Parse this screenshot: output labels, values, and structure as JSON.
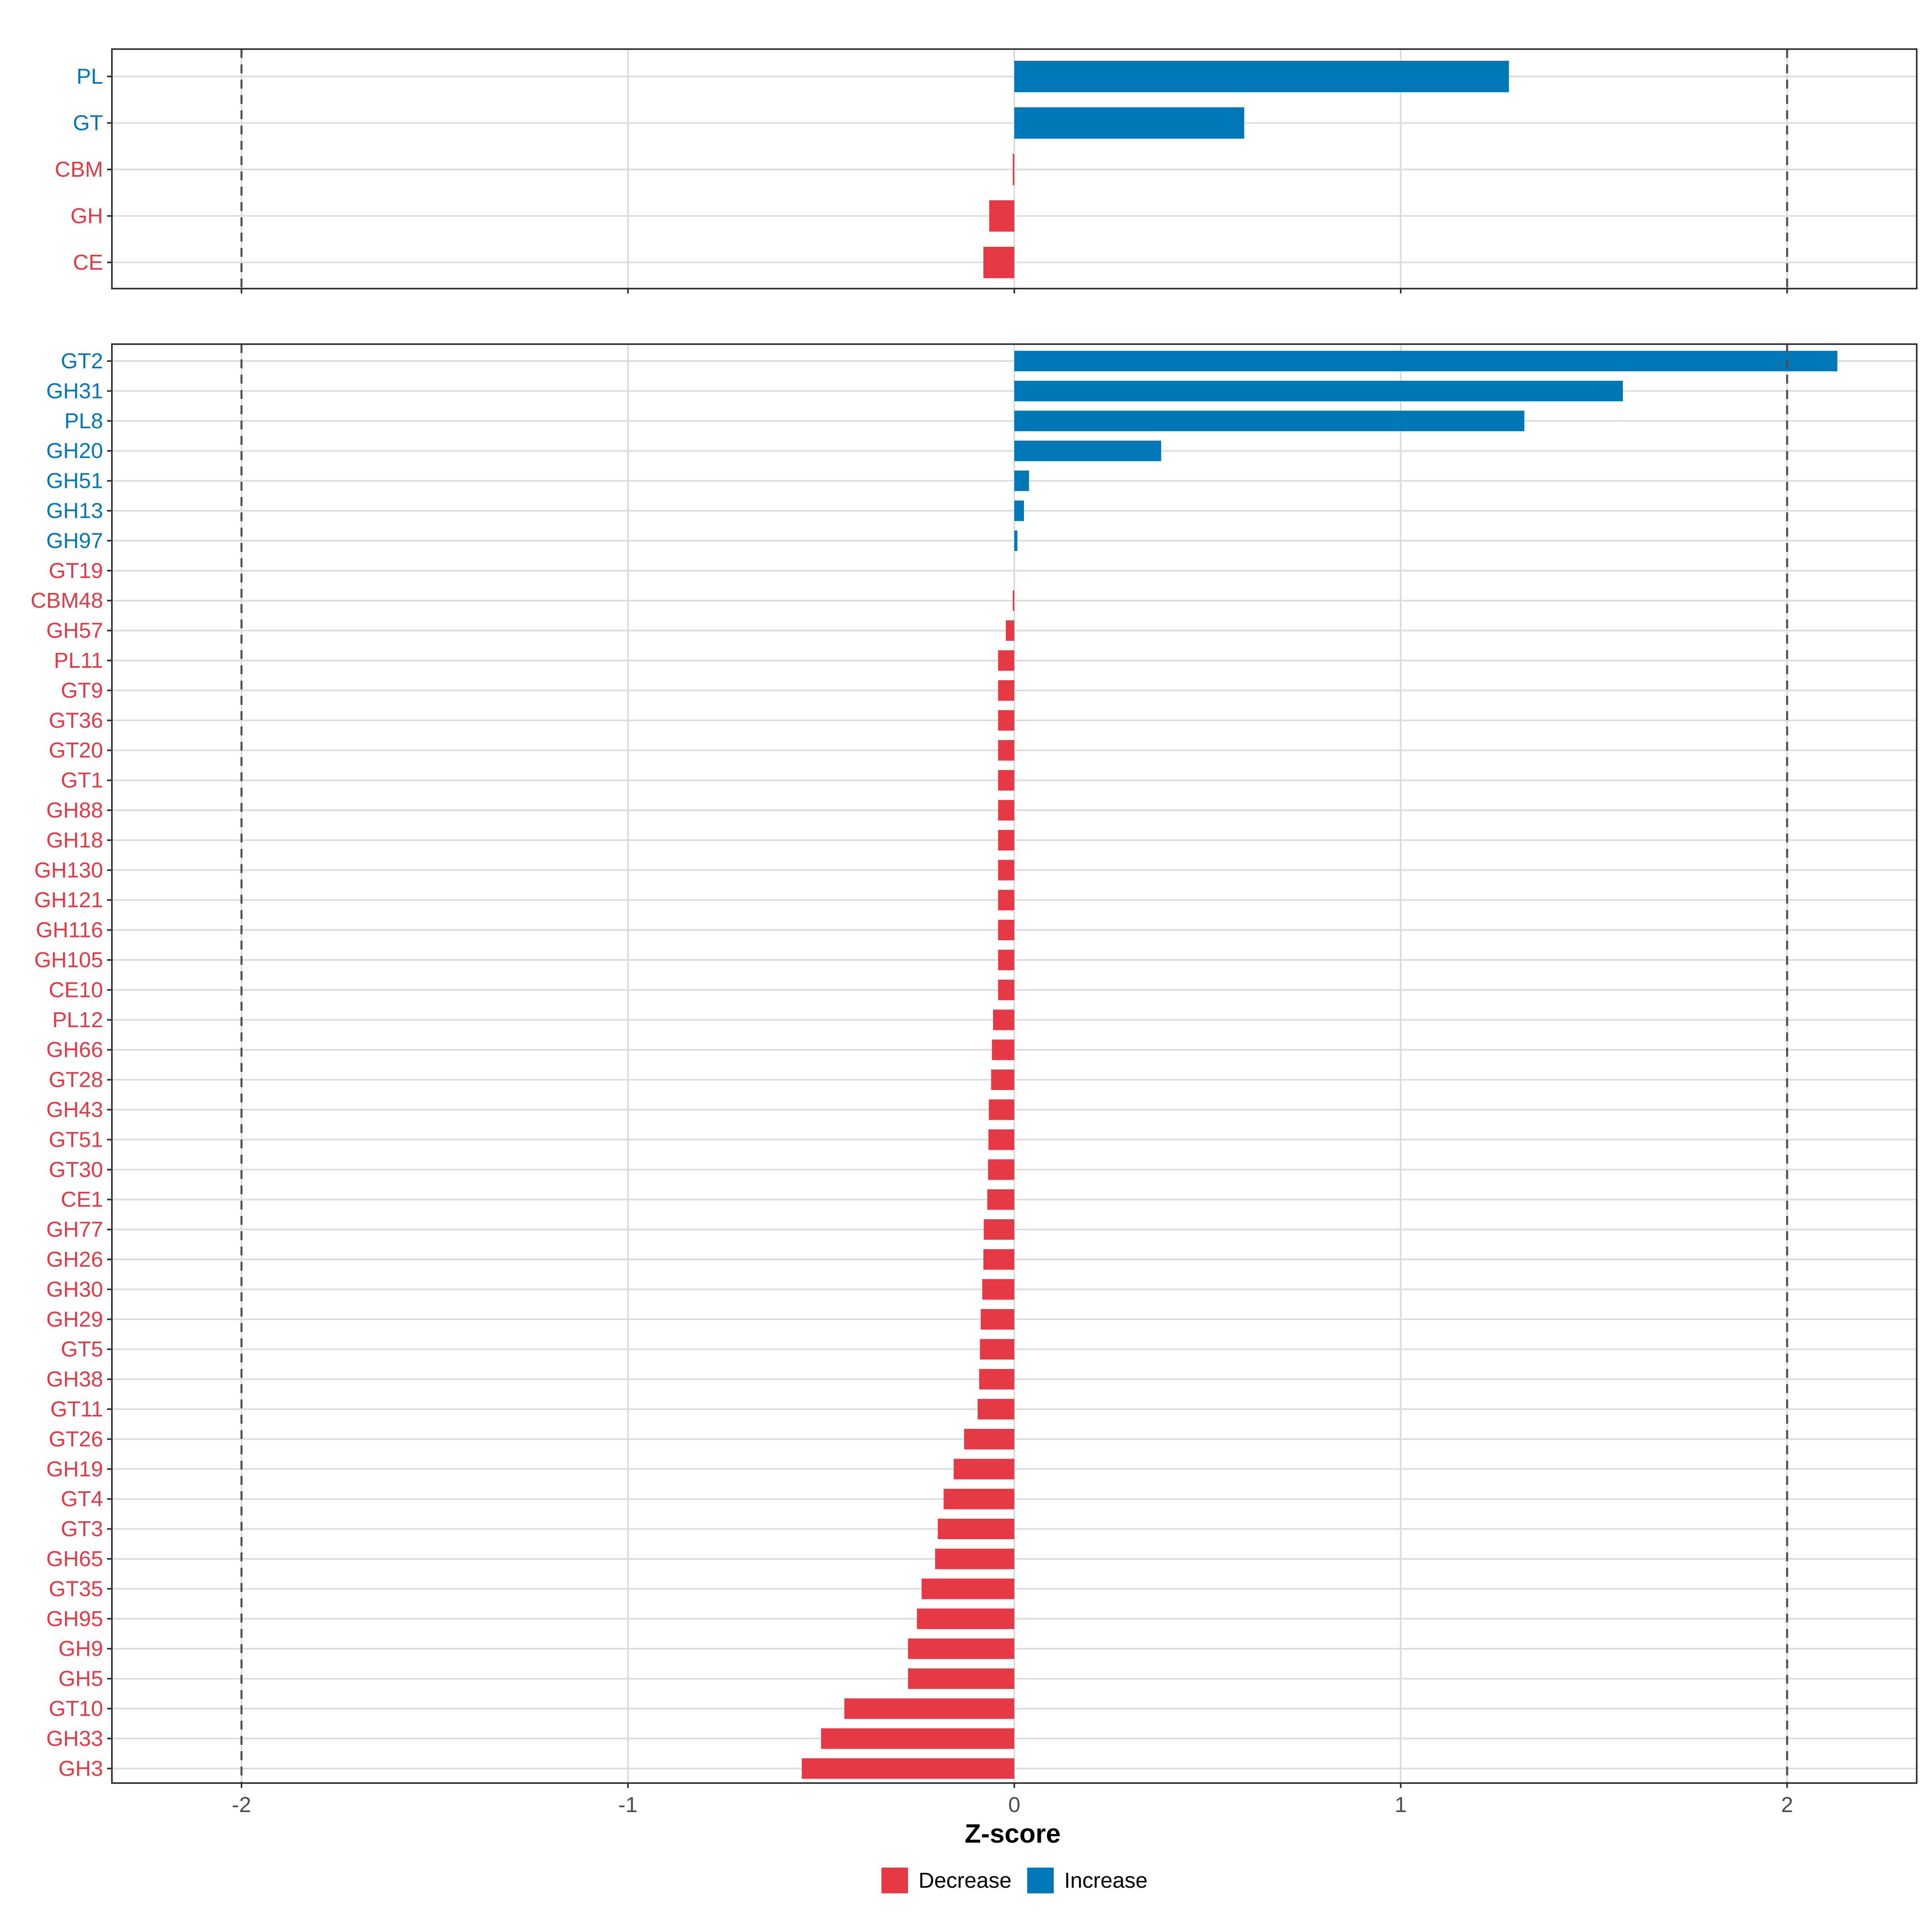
{
  "chart_data": {
    "type": "bar",
    "orientation": "horizontal",
    "xlabel": "Z-score",
    "xlim": [
      -2.34,
      2.34
    ],
    "x_ticks": [
      -2,
      -1,
      0,
      1,
      2
    ],
    "x_tick_labels": [
      "-2",
      "-1",
      "0",
      "1",
      "2"
    ],
    "reference_lines": [
      -2,
      2
    ],
    "grid": true,
    "colors": {
      "Decrease": "#e63946",
      "Increase": "#0077b6"
    },
    "legend": {
      "position": "bottom",
      "items": [
        "Decrease",
        "Increase"
      ]
    },
    "panels": [
      {
        "name": "classes",
        "categories": [
          "PL",
          "GT",
          "CBM",
          "GH",
          "CE"
        ],
        "values": [
          1.28,
          0.595,
          -0.004,
          -0.065,
          -0.08
        ],
        "groups": [
          "Increase",
          "Increase",
          "Decrease",
          "Decrease",
          "Decrease"
        ]
      },
      {
        "name": "families",
        "categories": [
          "GT2",
          "GH31",
          "PL8",
          "GH20",
          "GH51",
          "GH13",
          "GH97",
          "GT19",
          "CBM48",
          "GH57",
          "PL11",
          "GT9",
          "GT36",
          "GT20",
          "GT1",
          "GH88",
          "GH18",
          "GH130",
          "GH121",
          "GH116",
          "GH105",
          "CE10",
          "PL12",
          "GH66",
          "GT28",
          "GH43",
          "GT51",
          "GT30",
          "CE1",
          "GH77",
          "GH26",
          "GH30",
          "GH29",
          "GT5",
          "GH38",
          "GT11",
          "GT26",
          "GH19",
          "GT4",
          "GT3",
          "GH65",
          "GT35",
          "GH95",
          "GH9",
          "GH5",
          "GT10",
          "GH33",
          "GH3"
        ],
        "values": [
          2.13,
          1.575,
          1.32,
          0.38,
          0.038,
          0.025,
          0.008,
          0.0,
          -0.004,
          -0.022,
          -0.042,
          -0.042,
          -0.042,
          -0.042,
          -0.042,
          -0.042,
          -0.042,
          -0.042,
          -0.042,
          -0.042,
          -0.042,
          -0.042,
          -0.055,
          -0.058,
          -0.06,
          -0.066,
          -0.067,
          -0.068,
          -0.07,
          -0.079,
          -0.08,
          -0.083,
          -0.087,
          -0.089,
          -0.091,
          -0.095,
          -0.13,
          -0.157,
          -0.183,
          -0.198,
          -0.205,
          -0.24,
          -0.252,
          -0.275,
          -0.275,
          -0.44,
          -0.5,
          -0.55
        ],
        "groups": [
          "Increase",
          "Increase",
          "Increase",
          "Increase",
          "Increase",
          "Increase",
          "Increase",
          "Decrease",
          "Decrease",
          "Decrease",
          "Decrease",
          "Decrease",
          "Decrease",
          "Decrease",
          "Decrease",
          "Decrease",
          "Decrease",
          "Decrease",
          "Decrease",
          "Decrease",
          "Decrease",
          "Decrease",
          "Decrease",
          "Decrease",
          "Decrease",
          "Decrease",
          "Decrease",
          "Decrease",
          "Decrease",
          "Decrease",
          "Decrease",
          "Decrease",
          "Decrease",
          "Decrease",
          "Decrease",
          "Decrease",
          "Decrease",
          "Decrease",
          "Decrease",
          "Decrease",
          "Decrease",
          "Decrease",
          "Decrease",
          "Decrease",
          "Decrease",
          "Decrease",
          "Decrease",
          "Decrease"
        ]
      }
    ]
  }
}
